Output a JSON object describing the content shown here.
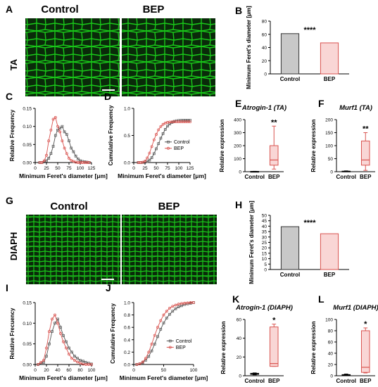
{
  "colors": {
    "control": "#555555",
    "bep": "#d9534f",
    "bep_fill": "#f9d6d5",
    "control_fill": "#c8c8c8",
    "tissue": "#19c919",
    "tissue_bg": "#0a2a0a"
  },
  "panels": {
    "A": {
      "letter": "A",
      "row_label": "TA",
      "headers": [
        "Control",
        "BEP"
      ]
    },
    "G": {
      "letter": "G",
      "row_label": "DIAPH",
      "headers": [
        "Control",
        "BEP"
      ]
    }
  },
  "chart_data": [
    {
      "id": "B",
      "letter": "B",
      "type": "bar",
      "categories": [
        "Control",
        "BEP"
      ],
      "values": [
        61,
        47
      ],
      "ylabel": "Minimum Feret's diameter [μm]",
      "ylim": [
        0,
        80
      ],
      "yticks": [
        0,
        20,
        40,
        60,
        80
      ],
      "annotation": "****"
    },
    {
      "id": "C",
      "letter": "C",
      "type": "line",
      "xlabel": "Minimum Feret's diameter [μm]",
      "ylabel": "Relative Frequency",
      "xlim": [
        0,
        125
      ],
      "ylim": [
        0,
        0.15
      ],
      "xticks": [
        0,
        25,
        50,
        75,
        100,
        125
      ],
      "yticks": [
        0.0,
        0.05,
        0.1,
        0.15
      ],
      "series": [
        {
          "x": [
            10,
            15,
            20,
            25,
            30,
            35,
            40,
            45,
            50,
            55,
            60,
            65,
            70,
            75,
            80,
            85,
            90,
            95,
            100,
            105,
            110,
            115,
            120
          ],
          "y": [
            0,
            0,
            0.002,
            0.005,
            0.012,
            0.025,
            0.045,
            0.075,
            0.09,
            0.095,
            0.1,
            0.085,
            0.078,
            0.06,
            0.04,
            0.03,
            0.018,
            0.01,
            0.005,
            0.003,
            0.002,
            0.001,
            0
          ]
        },
        {
          "x": [
            10,
            15,
            20,
            25,
            30,
            35,
            40,
            45,
            50,
            55,
            60,
            65,
            70,
            75,
            80,
            85,
            90,
            95,
            100,
            105,
            110,
            115,
            120
          ],
          "y": [
            0,
            0,
            0.005,
            0.02,
            0.06,
            0.09,
            0.12,
            0.125,
            0.1,
            0.085,
            0.06,
            0.04,
            0.025,
            0.012,
            0.006,
            0.003,
            0.001,
            0,
            0,
            0,
            0,
            0,
            0
          ]
        }
      ]
    },
    {
      "id": "D",
      "letter": "D",
      "type": "line",
      "xlabel": "Minimum Feret's diameter [μm]",
      "ylabel": "Cumulative Frequency",
      "xlim": [
        0,
        125
      ],
      "ylim": [
        0,
        1.0
      ],
      "xticks": [
        0,
        25,
        50,
        75,
        100,
        125
      ],
      "yticks": [
        0.0,
        0.5,
        1.0
      ],
      "legend": [
        "Control",
        "BEP"
      ],
      "series": [
        {
          "name": "Control",
          "x": [
            10,
            15,
            20,
            25,
            30,
            35,
            40,
            45,
            50,
            55,
            60,
            65,
            70,
            75,
            80,
            85,
            90,
            95,
            100,
            105,
            110,
            115,
            120,
            125
          ],
          "y": [
            0,
            0,
            0.002,
            0.007,
            0.019,
            0.044,
            0.089,
            0.164,
            0.254,
            0.349,
            0.449,
            0.534,
            0.612,
            0.672,
            0.712,
            0.742,
            0.76,
            0.77,
            0.775,
            0.778,
            0.78,
            0.781,
            0.781,
            0.781
          ]
        },
        {
          "name": "BEP",
          "x": [
            10,
            15,
            20,
            25,
            30,
            35,
            40,
            45,
            50,
            55,
            60,
            65,
            70,
            75,
            80,
            85,
            90,
            95,
            100,
            105,
            110,
            115,
            120,
            125
          ],
          "y": [
            0,
            0,
            0.005,
            0.025,
            0.085,
            0.175,
            0.295,
            0.42,
            0.52,
            0.605,
            0.665,
            0.705,
            0.73,
            0.742,
            0.748,
            0.751,
            0.752,
            0.752,
            0.752,
            0.752,
            0.752,
            0.752,
            0.752,
            0.752
          ]
        }
      ]
    },
    {
      "id": "E",
      "letter": "E",
      "type": "box",
      "title": "Atrogin-1 (TA)",
      "ylabel": "Relative expression",
      "categories": [
        "Control",
        "BEP"
      ],
      "ylim": [
        0,
        400
      ],
      "yticks": [
        0,
        100,
        200,
        300,
        400
      ],
      "annotation": "**",
      "boxes": [
        {
          "min": 1,
          "q1": 1,
          "median": 1,
          "q3": 2,
          "max": 3
        },
        {
          "min": 20,
          "q1": 50,
          "median": 90,
          "q3": 200,
          "max": 350
        }
      ]
    },
    {
      "id": "F",
      "letter": "F",
      "type": "box",
      "title": "Murf1 (TA)",
      "ylabel": "Relative expression",
      "categories": [
        "Control",
        "BEP"
      ],
      "ylim": [
        0,
        200
      ],
      "yticks": [
        0,
        50,
        100,
        150,
        200
      ],
      "annotation": "**",
      "boxes": [
        {
          "min": 1,
          "q1": 1,
          "median": 1,
          "q3": 2,
          "max": 3
        },
        {
          "min": 5,
          "q1": 25,
          "median": 45,
          "q3": 118,
          "max": 150
        }
      ]
    },
    {
      "id": "H",
      "letter": "H",
      "type": "bar",
      "categories": [
        "Control",
        "BEP"
      ],
      "values": [
        39.5,
        33
      ],
      "ylabel": "Minimum Feret's diameter [μm]",
      "ylim": [
        0,
        50
      ],
      "yticks": [
        0,
        5,
        10,
        15,
        20,
        25,
        30,
        35,
        40,
        45,
        50
      ],
      "annotation": "****"
    },
    {
      "id": "I",
      "letter": "I",
      "type": "line",
      "xlabel": "Minimum Feret's diameter [μm]",
      "ylabel": "Relative Frecuency",
      "xlim": [
        0,
        100
      ],
      "ylim": [
        0,
        0.15
      ],
      "xticks": [
        0,
        20,
        40,
        60,
        80,
        100
      ],
      "yticks": [
        0.0,
        0.05,
        0.1,
        0.15
      ],
      "series": [
        {
          "x": [
            5,
            10,
            15,
            20,
            25,
            30,
            35,
            40,
            45,
            50,
            55,
            60,
            65,
            70,
            75,
            80,
            85,
            90,
            95,
            100
          ],
          "y": [
            0,
            0.002,
            0.005,
            0.02,
            0.05,
            0.08,
            0.1,
            0.11,
            0.09,
            0.07,
            0.055,
            0.04,
            0.03,
            0.02,
            0.015,
            0.01,
            0.008,
            0.005,
            0.003,
            0.001
          ]
        },
        {
          "x": [
            5,
            10,
            15,
            20,
            25,
            30,
            35,
            40,
            45,
            50,
            55,
            60,
            65,
            70,
            75,
            80,
            85,
            90,
            95,
            100
          ],
          "y": [
            0,
            0.005,
            0.01,
            0.04,
            0.08,
            0.11,
            0.12,
            0.1,
            0.075,
            0.055,
            0.04,
            0.025,
            0.015,
            0.01,
            0.006,
            0.003,
            0.001,
            0,
            0,
            0
          ]
        }
      ]
    },
    {
      "id": "J",
      "letter": "J",
      "type": "line",
      "xlabel": "Minimum Feret's diameter [μm]",
      "ylabel": "Cumulative Frequency",
      "xlim": [
        0,
        100
      ],
      "ylim": [
        0,
        1.0
      ],
      "xticks": [
        0,
        50,
        100
      ],
      "yticks": [
        0.0,
        0.2,
        0.4,
        0.6,
        0.8,
        1.0
      ],
      "legend": [
        "Control",
        "BEP"
      ],
      "series": [
        {
          "name": "Control",
          "x": [
            5,
            10,
            15,
            20,
            25,
            30,
            35,
            40,
            45,
            50,
            55,
            60,
            65,
            70,
            75,
            80,
            85,
            90,
            95,
            100
          ],
          "y": [
            0,
            0.01,
            0.03,
            0.07,
            0.13,
            0.22,
            0.33,
            0.45,
            0.57,
            0.67,
            0.75,
            0.81,
            0.86,
            0.9,
            0.93,
            0.95,
            0.97,
            0.98,
            0.99,
            1.0
          ]
        },
        {
          "name": "BEP",
          "x": [
            5,
            10,
            15,
            20,
            25,
            30,
            35,
            40,
            45,
            50,
            55,
            60,
            65,
            70,
            75,
            80,
            85,
            90,
            95,
            100
          ],
          "y": [
            0,
            0.01,
            0.04,
            0.1,
            0.2,
            0.33,
            0.47,
            0.6,
            0.71,
            0.8,
            0.86,
            0.91,
            0.94,
            0.96,
            0.975,
            0.985,
            0.99,
            0.995,
            1.0,
            1.0
          ]
        }
      ]
    },
    {
      "id": "K",
      "letter": "K",
      "type": "box",
      "title": "Atrogin-1 (DIAPH)",
      "ylabel": "Relative expression",
      "categories": [
        "Control",
        "BEP"
      ],
      "ylim": [
        0,
        60
      ],
      "yticks": [
        0,
        20,
        40,
        60
      ],
      "annotation": "*",
      "boxes": [
        {
          "min": 1,
          "q1": 1.5,
          "median": 2,
          "q3": 2.5,
          "max": 3
        },
        {
          "min": 10,
          "q1": 10,
          "median": 13,
          "q3": 52,
          "max": 55
        }
      ]
    },
    {
      "id": "L",
      "letter": "L",
      "type": "box",
      "title": "Murf1 (DIAPH)",
      "ylabel": "Relative expression",
      "categories": [
        "Control",
        "BEP"
      ],
      "ylim": [
        0,
        100
      ],
      "yticks": [
        0,
        20,
        40,
        60,
        80,
        100
      ],
      "annotation": "*",
      "boxes": [
        {
          "min": 1,
          "q1": 1,
          "median": 1.5,
          "q3": 2,
          "max": 3
        },
        {
          "min": 5,
          "q1": 6,
          "median": 15,
          "q3": 80,
          "max": 85
        }
      ]
    }
  ]
}
